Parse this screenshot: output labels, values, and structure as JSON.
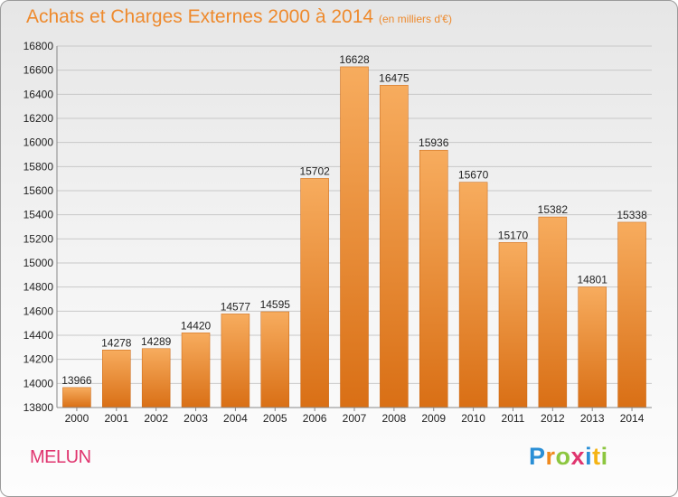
{
  "header": {
    "title": "Achats et Charges Externes 2000 à 2014",
    "subtitle": "(en milliers d'€)"
  },
  "footer": {
    "city": "MELUN",
    "logo_letters": [
      {
        "char": "P",
        "color": "#2a8fd6"
      },
      {
        "char": "r",
        "color": "#f08a1f"
      },
      {
        "char": "o",
        "color": "#8cc63f"
      },
      {
        "char": "x",
        "color": "#e0356f"
      },
      {
        "char": "i",
        "color": "#2a8fd6"
      },
      {
        "char": "t",
        "color": "#f5b414"
      },
      {
        "char": "i",
        "color": "#8cc63f"
      }
    ]
  },
  "chart_data": {
    "type": "bar",
    "title": "Achats et Charges Externes 2000 à 2014",
    "subtitle": "(en milliers d'€)",
    "categories": [
      "2000",
      "2001",
      "2002",
      "2003",
      "2004",
      "2005",
      "2006",
      "2007",
      "2008",
      "2009",
      "2010",
      "2011",
      "2012",
      "2013",
      "2014"
    ],
    "values": [
      13966,
      14278,
      14289,
      14420,
      14577,
      14595,
      15702,
      16628,
      16475,
      15936,
      15670,
      15170,
      15382,
      14801,
      15338
    ],
    "data_labels": [
      "13966",
      "14278",
      "14289",
      "14420",
      "14577",
      "14595",
      "15702",
      "16628",
      "16475",
      "15936",
      "15670",
      "15170",
      "15382",
      "14801",
      "15338"
    ],
    "ylim": [
      13800,
      16800
    ],
    "yticks": [
      13800,
      14000,
      14200,
      14400,
      14600,
      14800,
      15000,
      15200,
      15400,
      15600,
      15800,
      16000,
      16200,
      16400,
      16600,
      16800
    ],
    "ytick_labels": [
      "13800",
      "14000",
      "14200",
      "14400",
      "14600",
      "14800",
      "15000",
      "15200",
      "15400",
      "15600",
      "15800",
      "16000",
      "16200",
      "16400",
      "16600",
      "16800"
    ],
    "grid": true,
    "bar_color": "#f08a28",
    "bar_color_light": "#f7ac5e",
    "grid_color": "#c8c8c8"
  }
}
